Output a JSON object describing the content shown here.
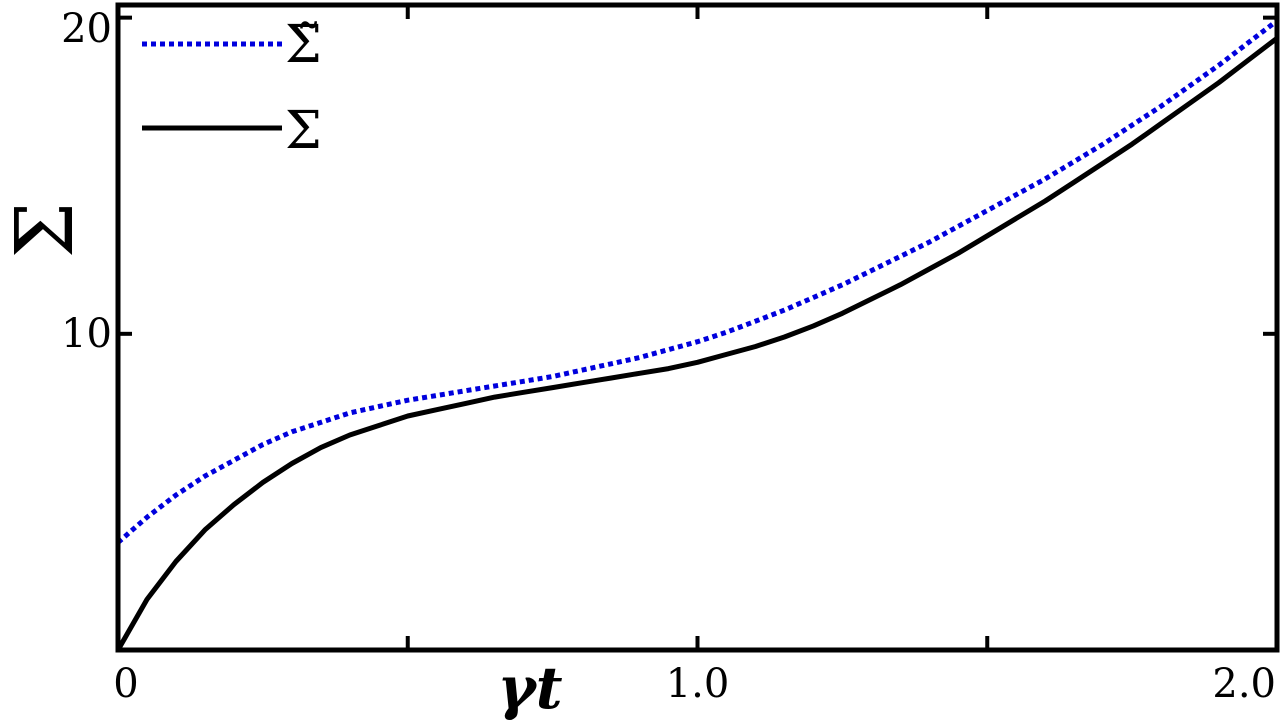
{
  "chart_data": {
    "type": "line",
    "title": "",
    "xlabel": "γt",
    "ylabel": "Σ",
    "xlim": [
      0,
      2.0
    ],
    "ylim": [
      0,
      20.4
    ],
    "grid": false,
    "legend_position": "top-left",
    "x_ticks": [
      0,
      0.5,
      1.0,
      1.5,
      2.0
    ],
    "x_tick_labels": [
      "0",
      "",
      "1.0",
      "",
      "2.0"
    ],
    "y_ticks": [
      10,
      20
    ],
    "y_tick_labels": [
      "10",
      "20"
    ],
    "x": [
      0,
      0.05,
      0.1,
      0.15,
      0.2,
      0.25,
      0.3,
      0.35,
      0.4,
      0.45,
      0.5,
      0.55,
      0.6,
      0.65,
      0.7,
      0.75,
      0.8,
      0.85,
      0.9,
      0.95,
      1.0,
      1.05,
      1.1,
      1.15,
      1.2,
      1.25,
      1.3,
      1.35,
      1.4,
      1.45,
      1.5,
      1.55,
      1.6,
      1.65,
      1.7,
      1.75,
      1.8,
      1.85,
      1.9,
      1.95,
      2.0
    ],
    "series": [
      {
        "name": "Σ̃",
        "color": "#0000dd",
        "style": "dotted",
        "values": [
          3.4,
          4.2,
          4.9,
          5.5,
          6.0,
          6.5,
          6.9,
          7.2,
          7.5,
          7.7,
          7.9,
          8.05,
          8.2,
          8.35,
          8.5,
          8.65,
          8.85,
          9.05,
          9.25,
          9.5,
          9.75,
          10.05,
          10.4,
          10.75,
          11.15,
          11.55,
          12.0,
          12.45,
          12.9,
          13.4,
          13.9,
          14.4,
          14.9,
          15.45,
          16.0,
          16.6,
          17.2,
          17.85,
          18.5,
          19.2,
          19.9
        ]
      },
      {
        "name": "Σ",
        "color": "#000000",
        "style": "solid",
        "values": [
          0.0,
          1.6,
          2.8,
          3.8,
          4.6,
          5.3,
          5.9,
          6.4,
          6.8,
          7.1,
          7.4,
          7.6,
          7.8,
          8.0,
          8.15,
          8.3,
          8.45,
          8.6,
          8.75,
          8.9,
          9.1,
          9.35,
          9.6,
          9.9,
          10.25,
          10.65,
          11.1,
          11.55,
          12.05,
          12.55,
          13.1,
          13.65,
          14.2,
          14.8,
          15.4,
          16.0,
          16.65,
          17.3,
          17.95,
          18.65,
          19.35
        ]
      }
    ]
  }
}
